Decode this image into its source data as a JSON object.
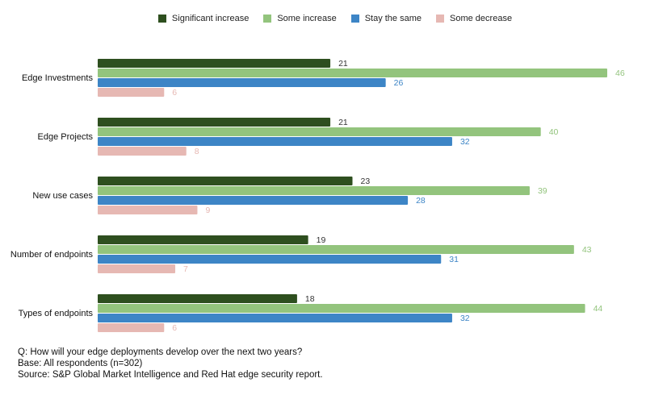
{
  "chart_data": {
    "type": "bar",
    "orientation": "horizontal",
    "categories": [
      "Edge Investments",
      "Edge Projects",
      "New use cases",
      "Number of endpoints",
      "Types of endpoints"
    ],
    "series": [
      {
        "name": "Significant increase",
        "color": "#2e4f1f",
        "label_color": "#333333",
        "values": [
          21,
          21,
          23,
          19,
          18
        ]
      },
      {
        "name": "Some increase",
        "color": "#93c47d",
        "label_color": "#93c47d",
        "values": [
          46,
          40,
          39,
          43,
          44
        ]
      },
      {
        "name": "Stay the same",
        "color": "#3d85c6",
        "label_color": "#3d85c6",
        "values": [
          26,
          32,
          28,
          31,
          32
        ]
      },
      {
        "name": "Some decrease",
        "color": "#e6b8b3",
        "label_color": "#e6b8b3",
        "values": [
          6,
          8,
          9,
          7,
          6
        ]
      }
    ],
    "xlim": [
      0,
      46
    ],
    "grid": false,
    "legend": "top"
  },
  "notes": [
    "Q: How will your edge deployments develop over the next two years?",
    "Base: All respondents (n=302)",
    "Source: S&P Global Market Intelligence and Red Hat edge security report."
  ]
}
